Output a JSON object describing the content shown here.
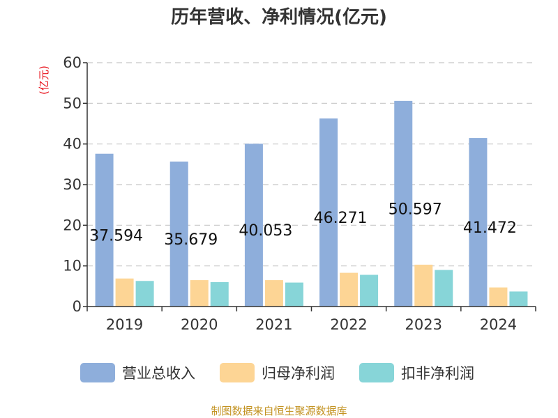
{
  "chart_data": {
    "type": "bar",
    "title": "历年营收、净利情况(亿元)",
    "ylabel": "(亿元)",
    "categories": [
      "2019",
      "2020",
      "2021",
      "2022",
      "2023",
      "2024"
    ],
    "series": [
      {
        "name": "营业总收入",
        "color": "#8eaedb",
        "values": [
          37.594,
          35.679,
          40.053,
          46.271,
          50.597,
          41.472
        ]
      },
      {
        "name": "归母净利润",
        "color": "#fdd595",
        "values": [
          6.9,
          6.5,
          6.5,
          8.3,
          10.3,
          4.7
        ]
      },
      {
        "name": "扣非净利润",
        "color": "#87d5d8",
        "values": [
          6.3,
          6.0,
          5.9,
          7.8,
          9.0,
          3.7
        ]
      }
    ],
    "data_labels": [
      "37.594",
      "35.679",
      "40.053",
      "46.271",
      "50.597",
      "41.472"
    ],
    "yticks": [
      0,
      10,
      20,
      30,
      40,
      50,
      60
    ],
    "ylim": [
      0,
      60
    ],
    "grid": true,
    "legend_position": "bottom"
  },
  "source": "制图数据来自恒生聚源数据库"
}
